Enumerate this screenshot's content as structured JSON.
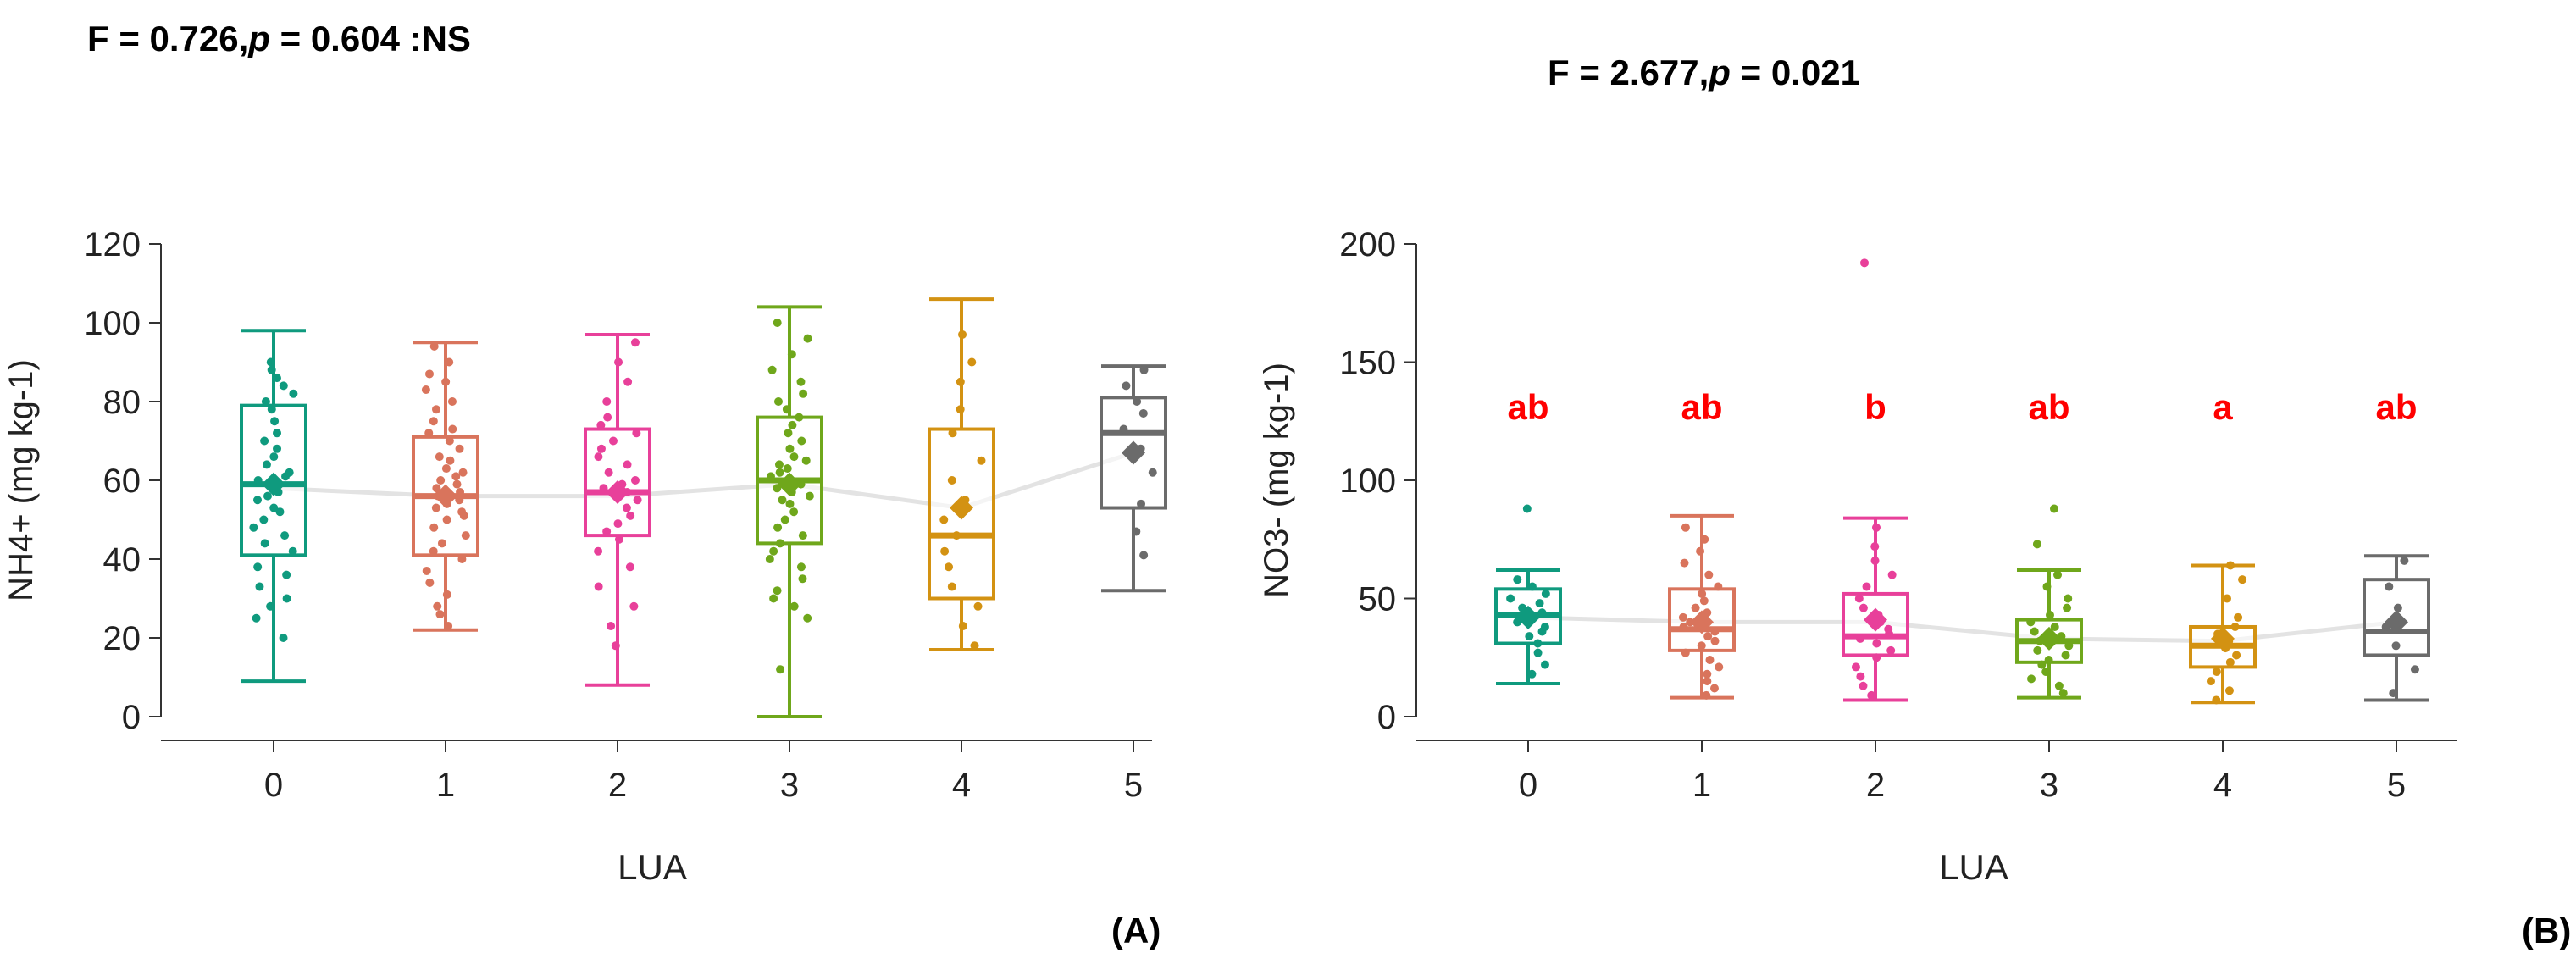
{
  "figure": {
    "panel_a": {
      "stat": {
        "f_part": "F = 0.726,",
        "p_symbol": "p",
        "p_part": " = 0.604 :NS"
      },
      "panel_label": "(A)"
    },
    "panel_b": {
      "stat": {
        "f_part": "F = 2.677,",
        "p_symbol": "p",
        "p_part": " = 0.021"
      },
      "panel_label": "(B)"
    }
  },
  "colors": {
    "group_0": "#0f9a7e",
    "group_1": "#d9745c",
    "group_2": "#e8409a",
    "group_3": "#6fa71b",
    "group_4": "#d39212",
    "group_5": "#6b6b6b",
    "mean_line": "#e3e3e3",
    "letters": "#ff0000",
    "axis": "#333333"
  },
  "chart_data": [
    {
      "type": "boxplot",
      "id": "A",
      "title": "F = 0.726, p = 0.604 :NS",
      "xlabel": "LUA",
      "ylabel": "NH4+ (mg kg-1)",
      "categories": [
        "0",
        "1",
        "2",
        "3",
        "4",
        "5"
      ],
      "ylim": [
        0,
        120
      ],
      "yticks": [
        0,
        20,
        40,
        60,
        80,
        100,
        120
      ],
      "boxes": [
        {
          "min": 9,
          "q1": 41,
          "median": 59,
          "q3": 79,
          "max": 98,
          "mean": 59
        },
        {
          "min": 22,
          "q1": 41,
          "median": 56,
          "q3": 71,
          "max": 95,
          "mean": 56
        },
        {
          "min": 8,
          "q1": 46,
          "median": 57,
          "q3": 73,
          "max": 97,
          "mean": 57
        },
        {
          "min": 0,
          "q1": 44,
          "median": 60,
          "q3": 76,
          "max": 104,
          "mean": 59
        },
        {
          "min": 17,
          "q1": 30,
          "median": 46,
          "q3": 73,
          "max": 106,
          "mean": 53
        },
        {
          "min": 32,
          "q1": 53,
          "median": 72,
          "q3": 81,
          "max": 89,
          "mean": 67
        }
      ],
      "points": [
        [
          20,
          25,
          28,
          30,
          33,
          36,
          38,
          42,
          44,
          46,
          48,
          50,
          52,
          53,
          55,
          56,
          57,
          58,
          59,
          60,
          61,
          62,
          64,
          66,
          68,
          70,
          72,
          75,
          78,
          80,
          82,
          84,
          86,
          88,
          90
        ],
        [
          23,
          26,
          28,
          31,
          34,
          37,
          40,
          42,
          44,
          46,
          48,
          50,
          51,
          52,
          53,
          54,
          55,
          56,
          57,
          58,
          59,
          60,
          61,
          62,
          63,
          65,
          66,
          68,
          70,
          72,
          73,
          75,
          78,
          80,
          83,
          85,
          87,
          90,
          94
        ],
        [
          18,
          23,
          28,
          33,
          38,
          42,
          45,
          47,
          49,
          51,
          53,
          55,
          56,
          57,
          58,
          59,
          60,
          62,
          64,
          66,
          68,
          70,
          72,
          74,
          76,
          80,
          85,
          90,
          95
        ],
        [
          12,
          25,
          28,
          30,
          32,
          35,
          38,
          40,
          42,
          44,
          46,
          48,
          50,
          52,
          54,
          55,
          56,
          57,
          58,
          59,
          60,
          61,
          62,
          63,
          64,
          65,
          66,
          68,
          70,
          72,
          74,
          76,
          78,
          80,
          82,
          85,
          88,
          92,
          96,
          100
        ],
        [
          18,
          23,
          28,
          33,
          38,
          42,
          46,
          50,
          55,
          60,
          65,
          72,
          78,
          85,
          90,
          97
        ],
        [
          41,
          47,
          54,
          62,
          68,
          73,
          77,
          80,
          84,
          88
        ]
      ],
      "mean_line": [
        58,
        56,
        56,
        59,
        53,
        67
      ],
      "letters": []
    },
    {
      "type": "boxplot",
      "id": "B",
      "title": "F = 2.677, p = 0.021",
      "xlabel": "LUA",
      "ylabel": "NO3- (mg kg-1)",
      "categories": [
        "0",
        "1",
        "2",
        "3",
        "4",
        "5"
      ],
      "ylim": [
        0,
        200
      ],
      "yticks": [
        0,
        50,
        100,
        150,
        200
      ],
      "boxes": [
        {
          "min": 14,
          "q1": 31,
          "median": 43,
          "q3": 54,
          "max": 62,
          "mean": 42
        },
        {
          "min": 8,
          "q1": 28,
          "median": 37,
          "q3": 54,
          "max": 85,
          "mean": 40
        },
        {
          "min": 7,
          "q1": 26,
          "median": 34,
          "q3": 52,
          "max": 84,
          "mean": 41
        },
        {
          "min": 8,
          "q1": 23,
          "median": 32,
          "q3": 41,
          "max": 62,
          "mean": 33
        },
        {
          "min": 6,
          "q1": 21,
          "median": 30,
          "q3": 38,
          "max": 64,
          "mean": 33
        },
        {
          "min": 7,
          "q1": 26,
          "median": 36,
          "q3": 58,
          "max": 68,
          "mean": 40
        }
      ],
      "points": [
        [
          18,
          22,
          27,
          31,
          34,
          36,
          38,
          40,
          42,
          44,
          46,
          48,
          50,
          52,
          55,
          58,
          88
        ],
        [
          9,
          12,
          15,
          18,
          21,
          24,
          27,
          30,
          32,
          34,
          36,
          38,
          40,
          42,
          44,
          46,
          49,
          52,
          55,
          60,
          65,
          70,
          75,
          80
        ],
        [
          9,
          13,
          17,
          21,
          25,
          28,
          31,
          33,
          35,
          37,
          40,
          43,
          46,
          50,
          55,
          60,
          66,
          72,
          80,
          192
        ],
        [
          10,
          13,
          16,
          19,
          22,
          24,
          26,
          28,
          30,
          32,
          34,
          36,
          38,
          40,
          43,
          46,
          50,
          55,
          60,
          73,
          88
        ],
        [
          7,
          11,
          15,
          19,
          23,
          26,
          29,
          32,
          35,
          38,
          42,
          50,
          58,
          64
        ],
        [
          10,
          20,
          30,
          38,
          46,
          55,
          66
        ]
      ],
      "mean_line": [
        42,
        40,
        40,
        33,
        32,
        40
      ],
      "letters": [
        "ab",
        "ab",
        "b",
        "ab",
        "a",
        "ab"
      ]
    }
  ]
}
